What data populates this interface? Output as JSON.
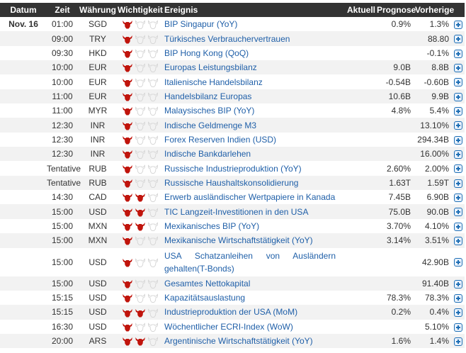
{
  "headers": {
    "date": "Datum",
    "time": "Zeit",
    "currency": "Währung",
    "importance": "Wichtigkeit",
    "event": "Ereignis",
    "actual": "Aktuell",
    "forecast": "Prognose",
    "previous": "Vorherige"
  },
  "colors": {
    "header_bg": "#333333",
    "bull_active": "#c0140c",
    "bull_inactive": "#dddddd",
    "link": "#1f5fa8",
    "row_alt": "#f2f2f2"
  },
  "rows": [
    {
      "date": "Nov. 16",
      "time": "01:00",
      "currency": "SGD",
      "importance": 1,
      "event": "BIP Singapur (YoY)",
      "actual": "",
      "forecast": "0.9%",
      "previous": "1.3%"
    },
    {
      "date": "",
      "time": "09:00",
      "currency": "TRY",
      "importance": 1,
      "event": "Türkisches Verbrauchervertrauen",
      "actual": "",
      "forecast": "",
      "previous": "88.80"
    },
    {
      "date": "",
      "time": "09:30",
      "currency": "HKD",
      "importance": 1,
      "event": "BIP Hong Kong (QoQ)",
      "actual": "",
      "forecast": "",
      "previous": "-0.1%"
    },
    {
      "date": "",
      "time": "10:00",
      "currency": "EUR",
      "importance": 1,
      "event": "Europas Leistungsbilanz",
      "actual": "",
      "forecast": "9.0B",
      "previous": "8.8B"
    },
    {
      "date": "",
      "time": "10:00",
      "currency": "EUR",
      "importance": 1,
      "event": "Italienische Handelsbilanz",
      "actual": "",
      "forecast": "-0.54B",
      "previous": "-0.60B"
    },
    {
      "date": "",
      "time": "11:00",
      "currency": "EUR",
      "importance": 1,
      "event": "Handelsbilanz Europas",
      "actual": "",
      "forecast": "10.6B",
      "previous": "9.9B"
    },
    {
      "date": "",
      "time": "11:00",
      "currency": "MYR",
      "importance": 1,
      "event": "Malaysisches BIP (YoY)",
      "actual": "",
      "forecast": "4.8%",
      "previous": "5.4%"
    },
    {
      "date": "",
      "time": "12:30",
      "currency": "INR",
      "importance": 1,
      "event": "Indische Geldmenge M3",
      "actual": "",
      "forecast": "",
      "previous": "13.10%"
    },
    {
      "date": "",
      "time": "12:30",
      "currency": "INR",
      "importance": 1,
      "event": "Forex Reserven Indien (USD)",
      "actual": "",
      "forecast": "",
      "previous": "294.34B"
    },
    {
      "date": "",
      "time": "12:30",
      "currency": "INR",
      "importance": 1,
      "event": "Indische Bankdarlehen",
      "actual": "",
      "forecast": "",
      "previous": "16.00%"
    },
    {
      "date": "",
      "time": "Tentative",
      "currency": "RUB",
      "importance": 1,
      "event": "Russische Industrieproduktion (YoY)",
      "actual": "",
      "forecast": "2.60%",
      "previous": "2.00%"
    },
    {
      "date": "",
      "time": "Tentative",
      "currency": "RUB",
      "importance": 1,
      "event": "Russische Haushaltskonsolidierung",
      "actual": "",
      "forecast": "1.63T",
      "previous": "1.59T"
    },
    {
      "date": "",
      "time": "14:30",
      "currency": "CAD",
      "importance": 2,
      "event": "Erwerb ausländischer Wertpapiere in Kanada",
      "actual": "",
      "forecast": "7.45B",
      "previous": "6.90B"
    },
    {
      "date": "",
      "time": "15:00",
      "currency": "USD",
      "importance": 2,
      "event": "TIC Langzeit-Investitionen in den USA",
      "actual": "",
      "forecast": "75.0B",
      "previous": "90.0B"
    },
    {
      "date": "",
      "time": "15:00",
      "currency": "MXN",
      "importance": 2,
      "event": "Mexikanisches BIP (YoY)",
      "actual": "",
      "forecast": "3.70%",
      "previous": "4.10%"
    },
    {
      "date": "",
      "time": "15:00",
      "currency": "MXN",
      "importance": 1,
      "event": "Mexikanische Wirtschaftstätigkeit (YoY)",
      "actual": "",
      "forecast": "3.14%",
      "previous": "3.51%"
    },
    {
      "date": "",
      "time": "15:00",
      "currency": "USD",
      "importance": 1,
      "event": "USA Schatzanleihen von Ausländern gehalten(T-Bonds)",
      "actual": "",
      "forecast": "",
      "previous": "42.90B"
    },
    {
      "date": "",
      "time": "15:00",
      "currency": "USD",
      "importance": 1,
      "event": "Gesamtes Nettokapital",
      "actual": "",
      "forecast": "",
      "previous": "91.40B"
    },
    {
      "date": "",
      "time": "15:15",
      "currency": "USD",
      "importance": 1,
      "event": "Kapazitätsauslastung",
      "actual": "",
      "forecast": "78.3%",
      "previous": "78.3%"
    },
    {
      "date": "",
      "time": "15:15",
      "currency": "USD",
      "importance": 2,
      "event": "Industrieproduktion der USA (MoM)",
      "actual": "",
      "forecast": "0.2%",
      "previous": "0.4%"
    },
    {
      "date": "",
      "time": "16:30",
      "currency": "USD",
      "importance": 1,
      "event": "Wöchentlicher ECRI-Index (WoW)",
      "actual": "",
      "forecast": "",
      "previous": "5.10%"
    },
    {
      "date": "",
      "time": "20:00",
      "currency": "ARS",
      "importance": 2,
      "event": "Argentinische Wirtschaftstätigkeit (YoY)",
      "actual": "",
      "forecast": "1.6%",
      "previous": "1.4%"
    }
  ]
}
